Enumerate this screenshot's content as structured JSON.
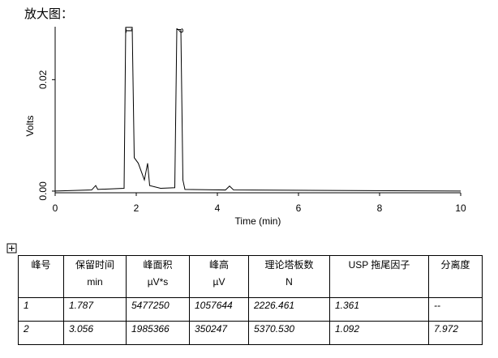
{
  "heading": "放大图：",
  "chart_data": {
    "type": "line",
    "xlabel": "Time (min)",
    "ylabel": "Volts",
    "xlim": [
      0,
      10
    ],
    "ylim": [
      -0.0003,
      0.0295
    ],
    "xticks": [
      0,
      2,
      4,
      6,
      8,
      10
    ],
    "yticks": [
      {
        "value": 0,
        "label": "0.00"
      },
      {
        "value": 0.02,
        "label": "0.02"
      }
    ],
    "annotations": [
      {
        "text": "1",
        "x": 1.8,
        "y": 0.0294
      },
      {
        "text": "2",
        "x": 3.05,
        "y": 0.0294
      }
    ],
    "x": [
      0,
      0.9,
      1.0,
      1.05,
      1.7,
      1.74,
      1.9,
      1.95,
      2.05,
      2.2,
      2.28,
      2.33,
      2.6,
      2.95,
      3.0,
      3.1,
      3.15,
      3.2,
      4.2,
      4.3,
      4.4,
      10
    ],
    "series": [
      {
        "color": "#000000",
        "values": [
          0,
          0.0002,
          0.001,
          0.0003,
          0.0005,
          0.0294,
          0.0294,
          0.006,
          0.005,
          0.002,
          0.005,
          0.001,
          0.0005,
          0.0006,
          0.029,
          0.029,
          0.002,
          0.0003,
          0.0002,
          0.0009,
          0.0002,
          0
        ]
      },
      {
        "color": "#000000",
        "dashed": true,
        "values": [
          null,
          null,
          null,
          null,
          0.0003,
          null,
          null,
          null,
          0.005,
          null,
          null,
          null,
          null,
          null,
          null,
          null,
          null,
          null,
          null,
          null,
          null,
          null
        ]
      }
    ]
  },
  "table": {
    "header": [
      [
        "峰号",
        ""
      ],
      [
        "保留时间",
        "min"
      ],
      [
        "峰面积",
        "µV*s"
      ],
      [
        "峰高",
        "µV"
      ],
      [
        "理论塔板数",
        "N"
      ],
      [
        "USP 拖尾因子",
        ""
      ],
      [
        "分离度",
        ""
      ]
    ],
    "rows": [
      [
        "1",
        "1.787",
        "5477250",
        "1057644",
        "2226.461",
        "1.361",
        "--"
      ],
      [
        "2",
        "3.056",
        "1985366",
        "350247",
        "5370.530",
        "1.092",
        "7.972"
      ]
    ]
  }
}
